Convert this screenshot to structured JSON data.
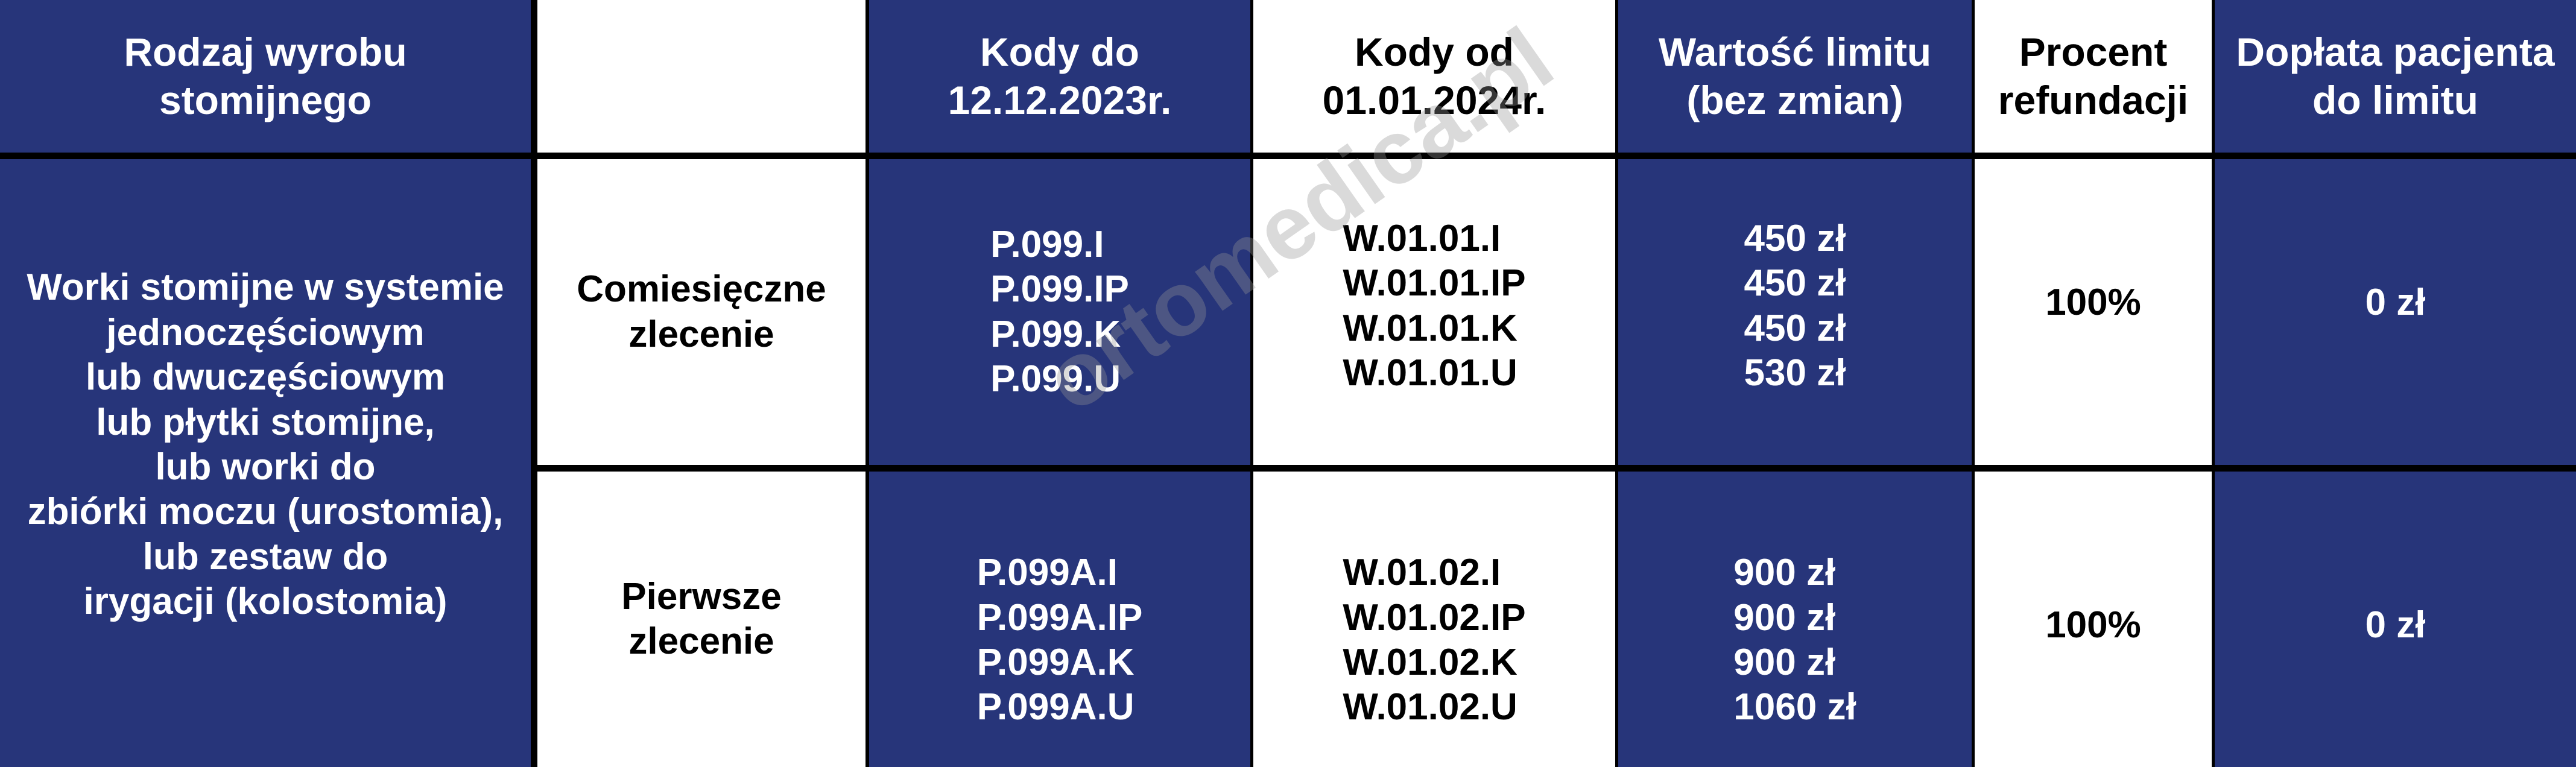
{
  "colors": {
    "cell_blue": "#27357a",
    "cell_white": "#ffffff",
    "border": "#000000"
  },
  "header": {
    "product_type": "Rodzaj wyrobu stomijnego",
    "order_type": "",
    "codes_before": "Kody do 12.12.2023r.",
    "codes_after": "Kody od 01.01.2024r.",
    "limit_value": "Wartość limitu (bez zmian)",
    "refund_percent": "Procent refundacji",
    "patient_copay": "Dopłata pacjenta do limitu"
  },
  "product": {
    "lines": [
      "Worki stomijne w systemie",
      "jednoczęściowym",
      "lub dwuczęściowym",
      "lub płytki stomijne,",
      "lub worki do",
      "zbiórki moczu (urostomia),",
      "lub zestaw do",
      "irygacji (kolostomia)"
    ]
  },
  "rows": [
    {
      "order": "Comiesięczne zlecenie",
      "codes_before": [
        "P.099.I",
        "P.099.IP",
        "P.099.K",
        "P.099.U"
      ],
      "codes_after": [
        "W.01.01.I",
        "W.01.01.IP",
        "W.01.01.K",
        "W.01.01.U"
      ],
      "limits": [
        "450 zł",
        "450 zł",
        "450 zł",
        "530 zł"
      ],
      "refund": "100%",
      "copay": "0 zł"
    },
    {
      "order": "Pierwsze zlecenie",
      "codes_before": [
        "P.099A.I",
        "P.099A.IP",
        "P.099A.K",
        "P.099A.U"
      ],
      "codes_after": [
        "W.01.02.I",
        "W.01.02.IP",
        "W.01.02.K",
        "W.01.02.U"
      ],
      "limits": [
        "900 zł",
        "900 zł",
        "900 zł",
        "1060 zł"
      ],
      "refund": "100%",
      "copay": "0 zł"
    }
  ],
  "watermark": "ortomedica.pl"
}
